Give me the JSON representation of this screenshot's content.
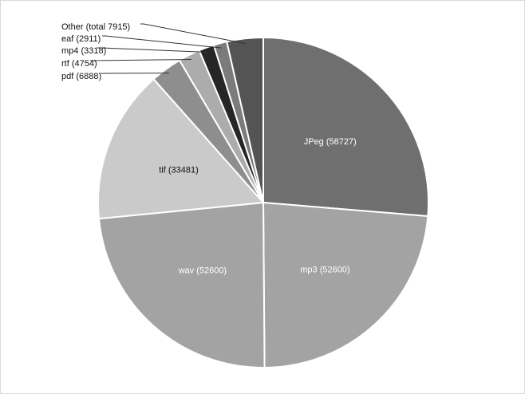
{
  "chart_data": {
    "type": "pie",
    "title": "",
    "start_angle_deg": 0,
    "direction": "clockwise",
    "slices": [
      {
        "label": "JPeg (58727)",
        "category": "JPeg",
        "value": 58727,
        "color": "#6f6f6f",
        "label_mode": "inside",
        "text_color": "#ffffff"
      },
      {
        "label": "mp3 (52600)",
        "category": "mp3",
        "value": 52600,
        "color": "#a3a3a3",
        "label_mode": "inside",
        "text_color": "#ffffff"
      },
      {
        "label": "wav (52600)",
        "category": "wav",
        "value": 52600,
        "color": "#a3a3a3",
        "label_mode": "inside",
        "text_color": "#ffffff"
      },
      {
        "label": "tif (33481)",
        "category": "tif",
        "value": 33481,
        "color": "#cacaca",
        "label_mode": "inside",
        "text_color": "#111111"
      },
      {
        "label": "pdf (6888)",
        "category": "pdf",
        "value": 6888,
        "color": "#8e8e8e",
        "label_mode": "callout",
        "text_color": "#111111"
      },
      {
        "label": "rtf (4754)",
        "category": "rtf",
        "value": 4754,
        "color": "#acacac",
        "label_mode": "callout",
        "text_color": "#111111"
      },
      {
        "label": "mp4 (3318)",
        "category": "mp4",
        "value": 3318,
        "color": "#262626",
        "label_mode": "callout",
        "text_color": "#111111"
      },
      {
        "label": "eaf (2911)",
        "category": "eaf",
        "value": 2911,
        "color": "#7b7b7b",
        "label_mode": "callout",
        "text_color": "#111111"
      },
      {
        "label": "Other (total 7915)",
        "category": "Other",
        "value": 7915,
        "color": "#545454",
        "label_mode": "callout",
        "text_color": "#111111"
      }
    ]
  }
}
